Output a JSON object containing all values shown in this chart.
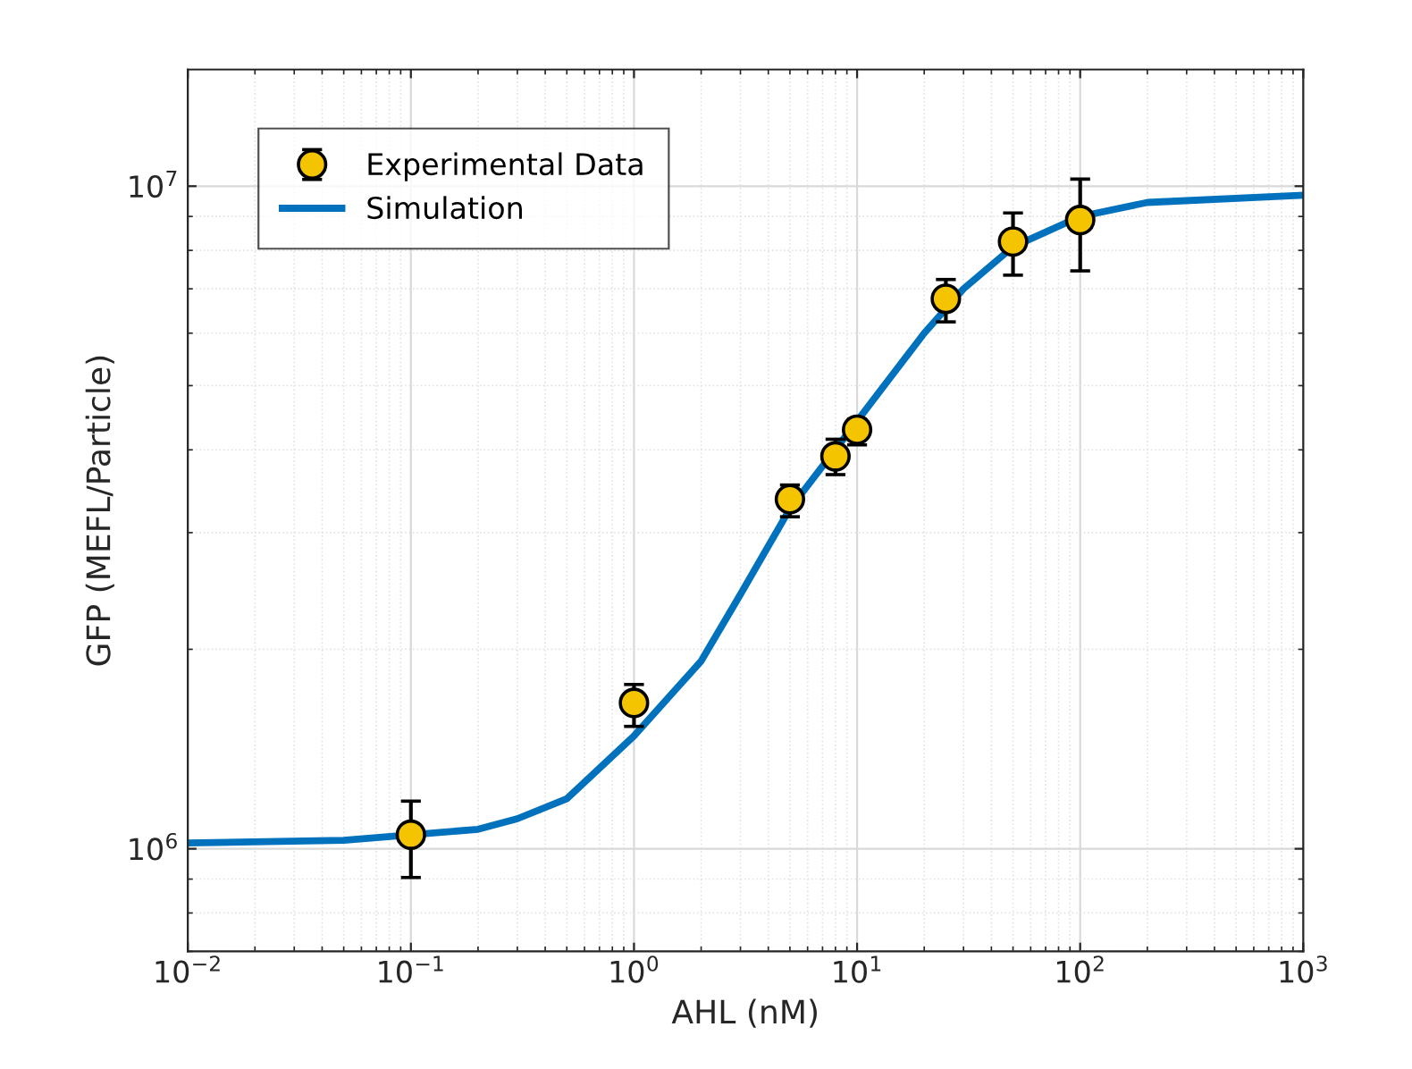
{
  "chart_data": {
    "type": "scatter",
    "xlabel": "AHL (nM)",
    "ylabel": "GFP (MEFL/Particle)",
    "log": "xy",
    "grid": true,
    "legend": "top left",
    "xlim": [
      0.01,
      1000
    ],
    "xticks": [
      {
        "value": 0.01,
        "label": "10$^{−2}$"
      },
      {
        "value": 0.1,
        "label": "10$^{−1}$"
      },
      {
        "value": 1,
        "label": "10$^{0}$"
      },
      {
        "value": 10,
        "label": "10$^{1}$"
      },
      {
        "value": 100,
        "label": "10$^{2}$"
      },
      {
        "value": 1000,
        "label": "10$^{3}$"
      }
    ],
    "ylim": [
      700000,
      15000000
    ],
    "yticks": [
      {
        "value": 1000000,
        "label": "10$^{6}$"
      },
      {
        "value": 10000000,
        "label": "10$^{7}$"
      }
    ],
    "series": [
      {
        "name": "Experimental Data",
        "color": "#f5c400",
        "marker": "circle",
        "x": [
          0.1,
          1,
          5,
          8,
          10,
          25,
          50,
          100
        ],
        "values": [
          1050000,
          1660000,
          3370000,
          3910000,
          4290000,
          6760000,
          8250000,
          8890000
        ],
        "errors": [
          [
            905000,
            1180000
          ],
          [
            1530000,
            1770000
          ],
          [
            3170000,
            3540000
          ],
          [
            3670000,
            4150000
          ],
          [
            4070000,
            4450000
          ],
          [
            6240000,
            7230000
          ],
          [
            7340000,
            9110000
          ],
          [
            7450000,
            10250000
          ]
        ]
      },
      {
        "name": "Simulation",
        "type": "line",
        "color": "#0072bd",
        "line_style": "solid",
        "x": [
          0.01,
          0.05,
          0.2,
          0.3,
          0.5,
          1,
          2,
          3,
          5,
          10,
          20,
          30,
          50,
          100,
          200,
          1000
        ],
        "values": [
          1020000,
          1030000,
          1070000,
          1110000,
          1190000,
          1480000,
          1920000,
          2420000,
          3260000,
          4420000,
          6000000,
          7000000,
          8100000,
          9000000,
          9450000,
          9690000
        ]
      }
    ]
  }
}
